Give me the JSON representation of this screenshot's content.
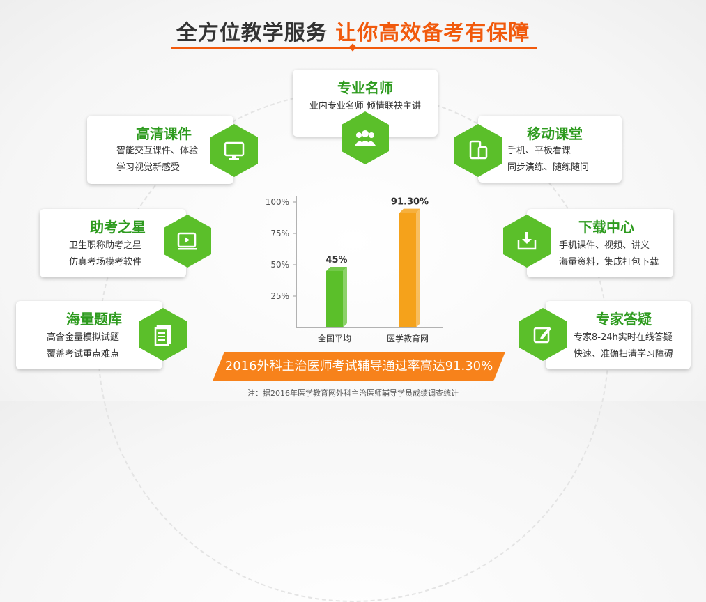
{
  "header": {
    "title_dark": "全方位教学服务",
    "title_orange": "让你高效备考有保障"
  },
  "features": {
    "teacher": {
      "title": "专业名师",
      "line1": "业内专业名师 倾情联袂主讲",
      "icon": "people-icon"
    },
    "courseware": {
      "title": "高清课件",
      "line1": "智能交互课件、体验",
      "line2": "学习视觉新感受",
      "icon": "monitor-icon"
    },
    "mobile": {
      "title": "移动课堂",
      "line1": "手机、平板看课",
      "line2": "同步演练、随练随问",
      "icon": "mobile-tablet-icon"
    },
    "helper": {
      "title": "助考之星",
      "line1": "卫生职称助考之星",
      "line2": "仿真考场模考软件",
      "icon": "video-play-icon"
    },
    "download": {
      "title": "下载中心",
      "line1": "手机课件、视频、讲义",
      "line2": "海量资料，集成打包下载",
      "icon": "download-icon"
    },
    "questions": {
      "title": "海量题库",
      "line1": "高含金量模拟试题",
      "line2": "覆盖考试重点难点",
      "icon": "document-icon"
    },
    "expert": {
      "title": "专家答疑",
      "line1": "专家8-24h实时在线答疑",
      "line2": "快速、准确扫清学习障碍",
      "icon": "edit-icon"
    }
  },
  "chart_data": {
    "type": "bar",
    "categories": [
      "全国平均",
      "医学教育网"
    ],
    "values": [
      45,
      91.3
    ],
    "data_labels": [
      "45%",
      "91.30%"
    ],
    "colors": [
      "#5bbf2a",
      "#f5a21b"
    ],
    "yticks": [
      "25%",
      "50%",
      "75%",
      "100%"
    ],
    "ylim": [
      0,
      100
    ]
  },
  "banner": {
    "text": "2016外科主治医师考试辅导通过率高达91.30%"
  },
  "footnote": "注：据2016年医学教育网外科主治医师辅导学员成绩调查统计"
}
